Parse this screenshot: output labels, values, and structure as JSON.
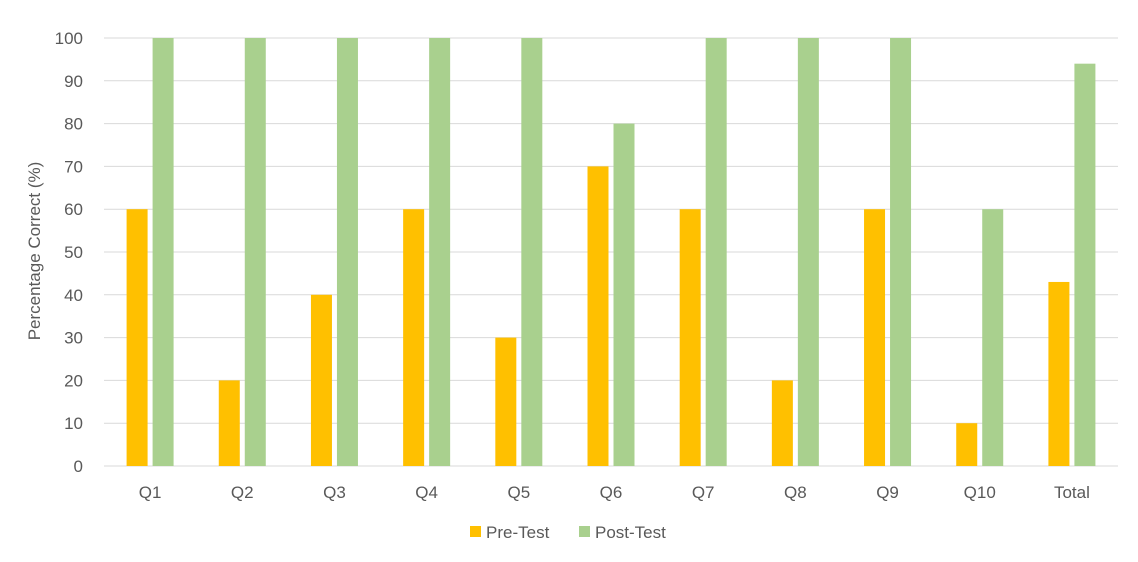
{
  "chart_data": {
    "type": "bar",
    "title": "",
    "xlabel": "",
    "ylabel": "Percentage Correct (%)",
    "ylim": [
      0,
      100
    ],
    "yticks": [
      0,
      10,
      20,
      30,
      40,
      50,
      60,
      70,
      80,
      90,
      100
    ],
    "categories": [
      "Q1",
      "Q2",
      "Q3",
      "Q4",
      "Q5",
      "Q6",
      "Q7",
      "Q8",
      "Q9",
      "Q10",
      "Total"
    ],
    "series": [
      {
        "name": "Pre-Test",
        "color": "#FFC000",
        "values": [
          60,
          20,
          40,
          60,
          30,
          70,
          60,
          20,
          60,
          10,
          43
        ]
      },
      {
        "name": "Post-Test",
        "color": "#A9D08E",
        "values": [
          100,
          100,
          100,
          100,
          100,
          80,
          100,
          100,
          100,
          60,
          94
        ]
      }
    ],
    "grid": true,
    "gridColor": "#D9D9D9",
    "legend": "bottom-center"
  }
}
